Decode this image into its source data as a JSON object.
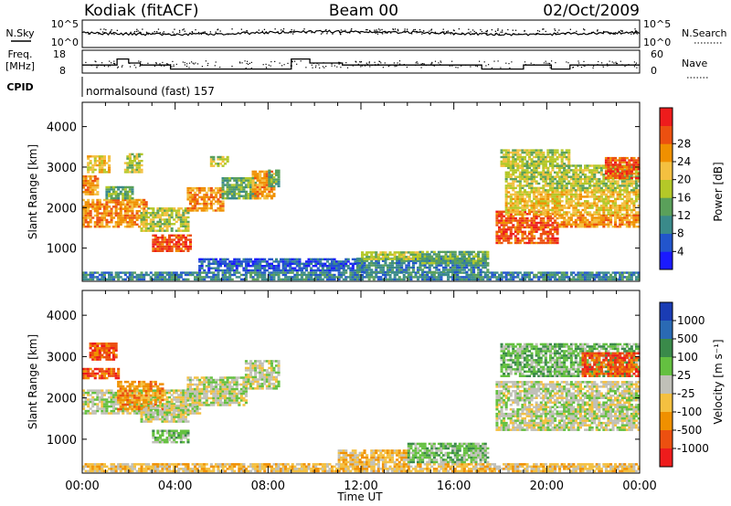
{
  "header": {
    "station": "Kodiak (fitACF)",
    "beam": "Beam 00",
    "date": "02/Oct/2009"
  },
  "status": {
    "nsky_label": "N.Sky",
    "nsearch_label": "N.Search",
    "nsky_ticks": [
      "10^5",
      "10^0"
    ],
    "nsearch_ticks": [
      "10^5",
      "10^0"
    ],
    "freq_label": "Freq.",
    "freq_unit": "[MHz]",
    "freq_ticks": [
      "18",
      "8"
    ],
    "nave_label": "Nave",
    "nave_ticks": [
      "60",
      "0"
    ],
    "cpid_label": "CPID",
    "cpid_text": "normalsound (fast) 157",
    "freq_steps_mhz": [
      {
        "start": 0.0,
        "end": 1.5,
        "value": 12
      },
      {
        "start": 1.5,
        "end": 2.0,
        "value": 15
      },
      {
        "start": 2.0,
        "end": 2.5,
        "value": 13
      },
      {
        "start": 2.5,
        "end": 3.8,
        "value": 12
      },
      {
        "start": 3.8,
        "end": 9.0,
        "value": 10
      },
      {
        "start": 9.0,
        "end": 9.8,
        "value": 15
      },
      {
        "start": 9.8,
        "end": 11.2,
        "value": 13
      },
      {
        "start": 11.2,
        "end": 17.2,
        "value": 12
      },
      {
        "start": 17.2,
        "end": 19.0,
        "value": 10
      },
      {
        "start": 19.0,
        "end": 20.2,
        "value": 12
      },
      {
        "start": 20.2,
        "end": 21.0,
        "value": 10
      },
      {
        "start": 21.0,
        "end": 24.0,
        "value": 12
      }
    ]
  },
  "chart_data": [
    {
      "type": "heatmap",
      "name": "power",
      "ylabel": "Slant Range [km]",
      "ylim": [
        180,
        4600
      ],
      "y_ticks": [
        1000,
        2000,
        3000,
        4000
      ],
      "colorbar": {
        "label": "Power [dB]",
        "ticks": [
          "4",
          "8",
          "12",
          "16",
          "20",
          "24",
          "28"
        ],
        "colors": [
          "#1a1aff",
          "#2255cc",
          "#3a8a8a",
          "#5aa05a",
          "#b4c828",
          "#f4c040",
          "#f09000",
          "#ec5010",
          "#ee1c1c"
        ]
      },
      "regions": [
        {
          "t": [
            0.0,
            0.7
          ],
          "r": [
            2300,
            2750
          ],
          "level": 6
        },
        {
          "t": [
            0.0,
            2.8
          ],
          "r": [
            1500,
            2200
          ],
          "level": 6
        },
        {
          "t": [
            0.2,
            1.2
          ],
          "r": [
            2850,
            3250
          ],
          "level": 5
        },
        {
          "t": [
            1.8,
            2.6
          ],
          "r": [
            2850,
            3300
          ],
          "level": 4
        },
        {
          "t": [
            1.0,
            2.2
          ],
          "r": [
            2200,
            2500
          ],
          "level": 3
        },
        {
          "t": [
            2.5,
            4.5
          ],
          "r": [
            1400,
            2000
          ],
          "level": 4
        },
        {
          "t": [
            3.0,
            4.6
          ],
          "r": [
            900,
            1300
          ],
          "level": 7
        },
        {
          "t": [
            4.5,
            6.0
          ],
          "r": [
            1900,
            2500
          ],
          "level": 6
        },
        {
          "t": [
            5.5,
            6.2
          ],
          "r": [
            3000,
            3250
          ],
          "level": 4
        },
        {
          "t": [
            6.0,
            7.4
          ],
          "r": [
            2200,
            2700
          ],
          "level": 3
        },
        {
          "t": [
            7.3,
            8.2
          ],
          "r": [
            2200,
            2900
          ],
          "level": 6
        },
        {
          "t": [
            8.0,
            8.4
          ],
          "r": [
            2500,
            2900
          ],
          "level": 3
        },
        {
          "t": [
            0.0,
            24.0
          ],
          "r": [
            200,
            420
          ],
          "level": 2
        },
        {
          "t": [
            5.0,
            12.0
          ],
          "r": [
            420,
            700
          ],
          "level": 1
        },
        {
          "t": [
            11.8,
            17.5
          ],
          "r": [
            380,
            750
          ],
          "level": 2
        },
        {
          "t": [
            12.0,
            14.5
          ],
          "r": [
            700,
            900
          ],
          "level": 4
        },
        {
          "t": [
            14.5,
            17.5
          ],
          "r": [
            600,
            900
          ],
          "level": 3
        },
        {
          "t": [
            17.8,
            20.5
          ],
          "r": [
            1100,
            1900
          ],
          "level": 7
        },
        {
          "t": [
            18.2,
            24.0
          ],
          "r": [
            1800,
            2400
          ],
          "level": 5
        },
        {
          "t": [
            20.5,
            24.0
          ],
          "r": [
            1500,
            1800
          ],
          "level": 6
        },
        {
          "t": [
            18.2,
            24.0
          ],
          "r": [
            2400,
            3050
          ],
          "level": 4
        },
        {
          "t": [
            22.5,
            24.0
          ],
          "r": [
            2700,
            3200
          ],
          "level": 7
        },
        {
          "t": [
            18.0,
            21.0
          ],
          "r": [
            3000,
            3400
          ],
          "level": 4
        }
      ]
    },
    {
      "type": "heatmap",
      "name": "velocity",
      "ylabel": "Slant Range [km]",
      "xlabel": "Time UT",
      "x_ticks": [
        "00:00",
        "04:00",
        "08:00",
        "12:00",
        "16:00",
        "20:00",
        "00:00"
      ],
      "ylim": [
        180,
        4600
      ],
      "y_ticks": [
        1000,
        2000,
        3000,
        4000
      ],
      "colorbar": {
        "label": "Velocity [m s⁻¹]",
        "ticks": [
          "1000",
          "500",
          "100",
          "25",
          "-25",
          "-100",
          "-500",
          "-1000"
        ],
        "colors": [
          "#1a3cb4",
          "#2a6ab4",
          "#3a8a4a",
          "#64c040",
          "#c0c0b8",
          "#f4c040",
          "#f09000",
          "#ec5010",
          "#ee1c1c"
        ]
      },
      "regions": [
        {
          "t": [
            0.0,
            1.6
          ],
          "r": [
            2450,
            2700
          ],
          "level": 7
        },
        {
          "t": [
            0.0,
            5.0
          ],
          "r": [
            1600,
            2200
          ],
          "level": 4
        },
        {
          "t": [
            0.3,
            1.5
          ],
          "r": [
            2900,
            3300
          ],
          "level": 7
        },
        {
          "t": [
            1.5,
            3.5
          ],
          "r": [
            1700,
            2400
          ],
          "level": 6
        },
        {
          "t": [
            2.5,
            4.5
          ],
          "r": [
            1400,
            1800
          ],
          "level": 4
        },
        {
          "t": [
            3.0,
            4.5
          ],
          "r": [
            900,
            1200
          ],
          "level": 3
        },
        {
          "t": [
            4.5,
            7.0
          ],
          "r": [
            1800,
            2500
          ],
          "level": 4
        },
        {
          "t": [
            7.0,
            8.4
          ],
          "r": [
            2200,
            2900
          ],
          "level": 4
        },
        {
          "t": [
            0.0,
            24.0
          ],
          "r": [
            200,
            420
          ],
          "level": 5
        },
        {
          "t": [
            11.0,
            14.0
          ],
          "r": [
            420,
            700
          ],
          "level": 5
        },
        {
          "t": [
            14.0,
            17.5
          ],
          "r": [
            420,
            900
          ],
          "level": 3
        },
        {
          "t": [
            17.8,
            24.0
          ],
          "r": [
            1200,
            2400
          ],
          "level": 4
        },
        {
          "t": [
            18.0,
            24.0
          ],
          "r": [
            2500,
            3300
          ],
          "level": 3
        },
        {
          "t": [
            21.5,
            24.0
          ],
          "r": [
            2500,
            3100
          ],
          "level": 7
        }
      ]
    }
  ]
}
